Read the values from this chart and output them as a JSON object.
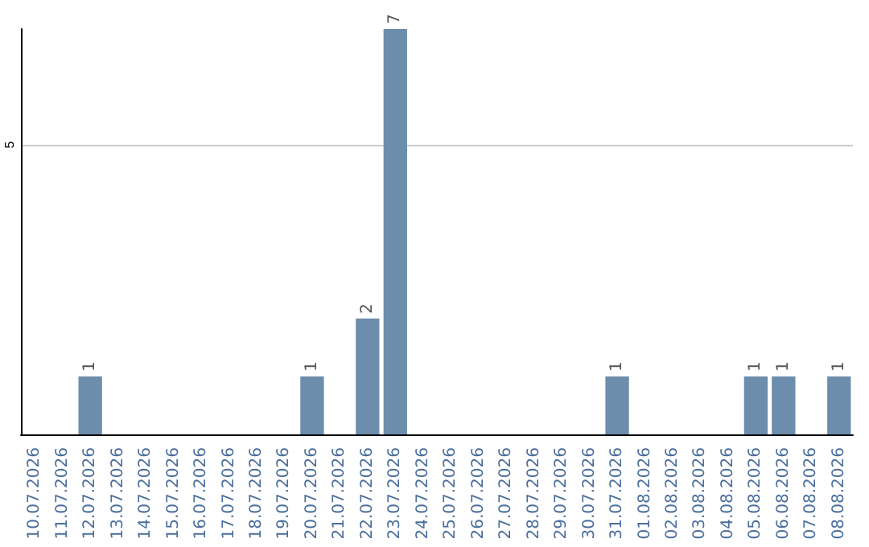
{
  "chart_data": {
    "type": "bar",
    "categories": [
      "10.07.2026",
      "11.07.2026",
      "12.07.2026",
      "13.07.2026",
      "14.07.2026",
      "15.07.2026",
      "16.07.2026",
      "17.07.2026",
      "18.07.2026",
      "19.07.2026",
      "20.07.2026",
      "21.07.2026",
      "22.07.2026",
      "23.07.2026",
      "24.07.2026",
      "25.07.2026",
      "26.07.2026",
      "27.07.2026",
      "28.07.2026",
      "29.07.2026",
      "30.07.2026",
      "31.07.2026",
      "01.08.2026",
      "02.08.2026",
      "03.08.2026",
      "04.08.2026",
      "05.08.2026",
      "06.08.2026",
      "07.08.2026",
      "08.08.2026"
    ],
    "values": [
      0,
      0,
      1,
      0,
      0,
      0,
      0,
      0,
      0,
      0,
      1,
      0,
      2,
      7,
      0,
      0,
      0,
      0,
      0,
      0,
      0,
      1,
      0,
      0,
      0,
      0,
      1,
      1,
      0,
      1
    ],
    "value_labels": [
      null,
      null,
      "1",
      null,
      null,
      null,
      null,
      null,
      null,
      null,
      "1",
      null,
      "2",
      "7",
      null,
      null,
      null,
      null,
      null,
      null,
      null,
      "1",
      null,
      null,
      null,
      null,
      "1",
      "1",
      null,
      "1"
    ],
    "color": "#6c8dac",
    "ylim": [
      0,
      7
    ],
    "yticks": [
      {
        "value": 0,
        "label": null
      },
      5
    ],
    "grid": "y"
  }
}
